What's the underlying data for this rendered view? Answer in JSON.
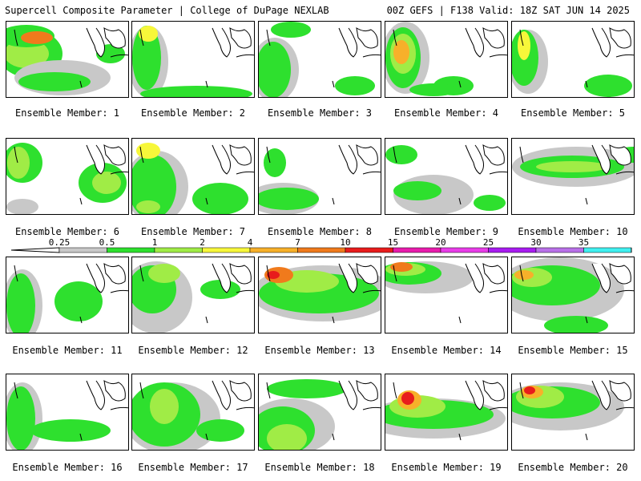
{
  "header": {
    "left": "Supercell Composite Parameter | College of DuPage NEXLAB",
    "right": "00Z GEFS | F138 Valid: 18Z SAT JUN 14 2025"
  },
  "members": [
    {
      "label": "Ensemble Member: 1"
    },
    {
      "label": "Ensemble Member: 2"
    },
    {
      "label": "Ensemble Member: 3"
    },
    {
      "label": "Ensemble Member: 4"
    },
    {
      "label": "Ensemble Member: 5"
    },
    {
      "label": "Ensemble Member: 6"
    },
    {
      "label": "Ensemble Member: 7"
    },
    {
      "label": "Ensemble Member: 8"
    },
    {
      "label": "Ensemble Member: 9"
    },
    {
      "label": "Ensemble Member: 10"
    },
    {
      "label": "Ensemble Member: 11"
    },
    {
      "label": "Ensemble Member: 12"
    },
    {
      "label": "Ensemble Member: 13"
    },
    {
      "label": "Ensemble Member: 14"
    },
    {
      "label": "Ensemble Member: 15"
    },
    {
      "label": "Ensemble Member: 16"
    },
    {
      "label": "Ensemble Member: 17"
    },
    {
      "label": "Ensemble Member: 18"
    },
    {
      "label": "Ensemble Member: 19"
    },
    {
      "label": "Ensemble Member: 20"
    }
  ],
  "legend": {
    "ticks": [
      "0.25",
      "0.5",
      "1",
      "2",
      "4",
      "7",
      "10",
      "15",
      "20",
      "25",
      "30",
      "35"
    ],
    "colors": [
      "#c8c8c8",
      "#2ee02e",
      "#a0ec46",
      "#f7f73a",
      "#f7b02a",
      "#f07a1c",
      "#e81c1c",
      "#e81cac",
      "#e83ce8",
      "#a81cf0",
      "#b870e8",
      "#40f0f0"
    ]
  }
}
